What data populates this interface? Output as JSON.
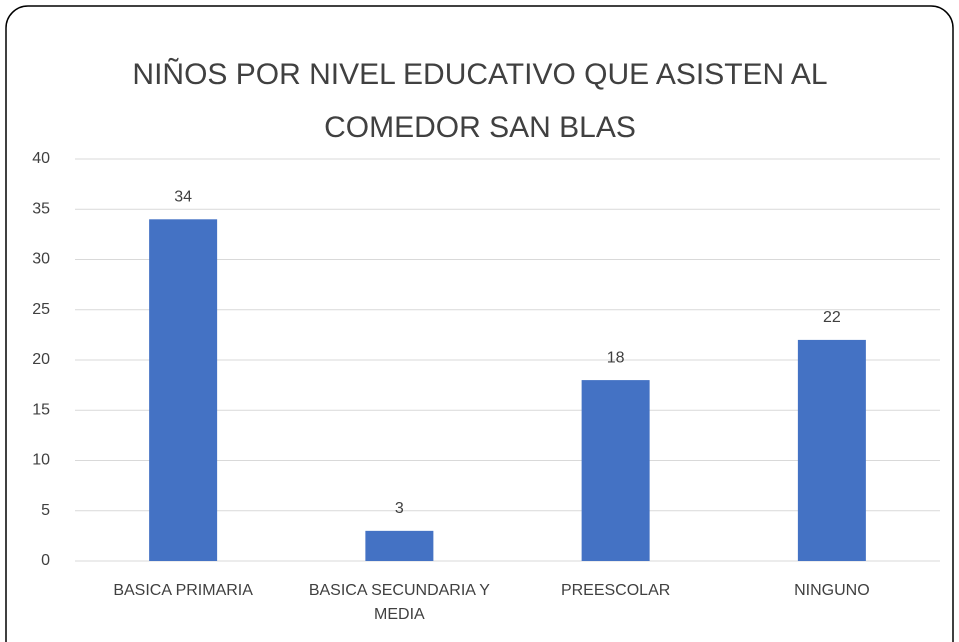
{
  "chart_data": {
    "type": "bar",
    "title": [
      "NIÑOS POR NIVEL EDUCATIVO QUE ASISTEN AL",
      "COMEDOR SAN BLAS"
    ],
    "categories": [
      "BASICA PRIMARIA",
      "BASICA SECUNDARIA Y MEDIA",
      "PREESCOLAR",
      "NINGUNO"
    ],
    "values": [
      34,
      3,
      18,
      22
    ],
    "color": "#4472c4",
    "ylim": [
      0,
      40
    ],
    "yticks": [
      0,
      5,
      10,
      15,
      20,
      25,
      30,
      35,
      40
    ],
    "grid": true
  }
}
